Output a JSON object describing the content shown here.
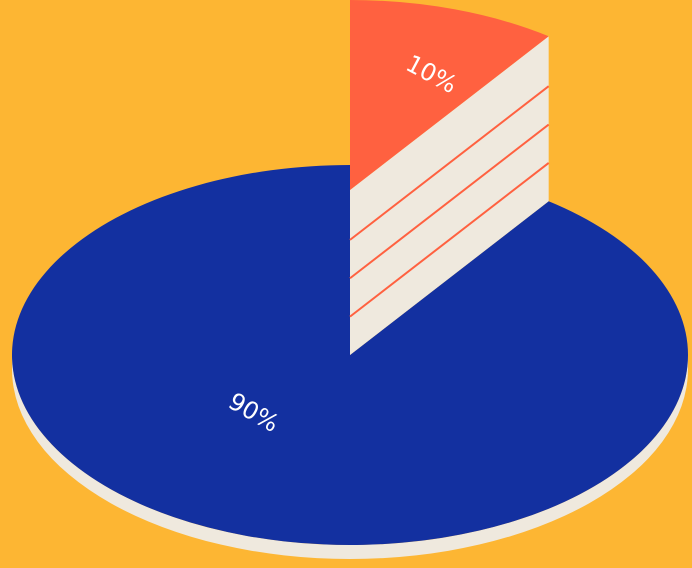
{
  "chart_data": {
    "type": "pie",
    "values": [
      90,
      10
    ],
    "value_labels": [
      "90%",
      "10%"
    ],
    "colors": [
      "#1330a0",
      "#ff6140"
    ]
  }
}
